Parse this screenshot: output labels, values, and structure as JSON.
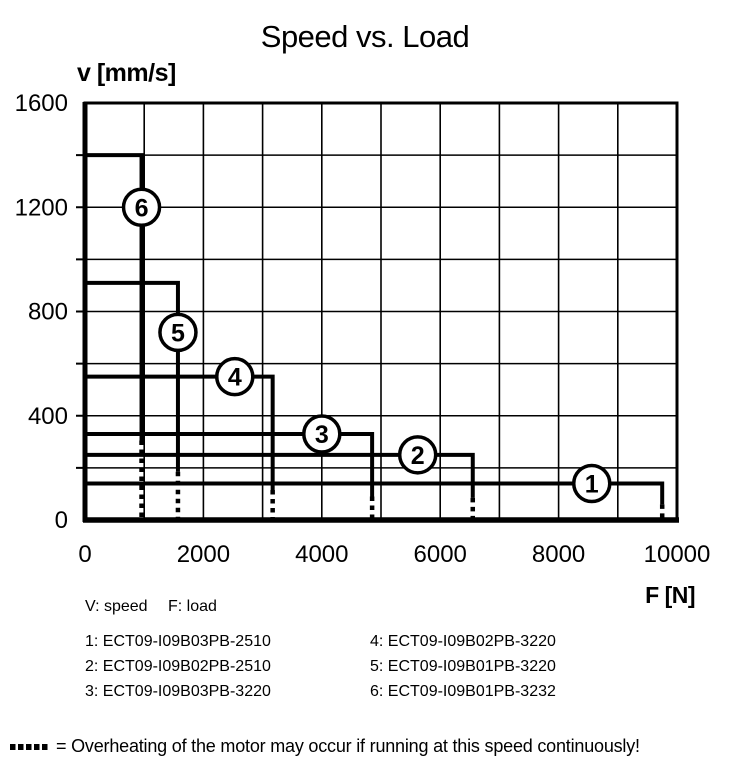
{
  "title": "Speed vs. Load",
  "axes": {
    "y_unit_label": "v [mm/s]",
    "x_unit_label": "F [N]"
  },
  "key": {
    "speed": "V: speed",
    "load": "F: load"
  },
  "legend": {
    "items": [
      "1: ECT09-I09B03PB-2510",
      "2: ECT09-I09B02PB-2510",
      "3: ECT09-I09B03PB-3220",
      "4: ECT09-I09B02PB-3220",
      "5: ECT09-I09B01PB-3220",
      "6: ECT09-I09B01PB-3232"
    ]
  },
  "footer": {
    "note": "= Overheating of the motor may occur if running at this speed continuously!"
  },
  "colors": {
    "ink": "#000000",
    "background": "#ffffff"
  },
  "chart_data": {
    "type": "line",
    "title": "Speed vs. Load",
    "xlabel": "F [N]",
    "ylabel": "v [mm/s]",
    "xlim": [
      0,
      10000
    ],
    "ylim": [
      0,
      1600
    ],
    "x_ticks": [
      0,
      2000,
      4000,
      6000,
      8000,
      10000
    ],
    "y_ticks": [
      0,
      400,
      800,
      1200,
      1600
    ],
    "x_grid_step": 1000,
    "y_grid_step": 200,
    "grid": true,
    "legend_position": "below",
    "dotted_meaning": "Overheating of the motor may occur if running at this speed continuously!",
    "series": [
      {
        "id": "1",
        "model": "ECT09-I09B03PB-2510",
        "speed_mm_s": 140,
        "max_load_N": 9750,
        "solid_drop_to_speed": 60,
        "dotted_below": true,
        "label_pos": {
          "F": 8560,
          "v": 140
        }
      },
      {
        "id": "2",
        "model": "ECT09-I09B02PB-2510",
        "speed_mm_s": 250,
        "max_load_N": 6550,
        "solid_drop_to_speed": 85,
        "dotted_below": true,
        "label_pos": {
          "F": 5620,
          "v": 250
        }
      },
      {
        "id": "3",
        "model": "ECT09-I09B03PB-3220",
        "speed_mm_s": 330,
        "max_load_N": 4850,
        "solid_drop_to_speed": 90,
        "dotted_below": true,
        "label_pos": {
          "F": 4000,
          "v": 330
        }
      },
      {
        "id": "4",
        "model": "ECT09-I09B02PB-3220",
        "speed_mm_s": 550,
        "max_load_N": 3170,
        "solid_drop_to_speed": 115,
        "dotted_below": true,
        "label_pos": {
          "F": 2530,
          "v": 550
        }
      },
      {
        "id": "5",
        "model": "ECT09-I09B01PB-3220",
        "speed_mm_s": 910,
        "max_load_N": 1570,
        "solid_drop_to_speed": 185,
        "dotted_below": true,
        "label_pos": {
          "F": 1570,
          "v": 720
        }
      },
      {
        "id": "6",
        "model": "ECT09-I09B01PB-3232",
        "speed_mm_s": 1400,
        "max_load_N": 955,
        "solid_drop_to_speed": 305,
        "dotted_below": true,
        "label_pos": {
          "F": 955,
          "v": 1200
        }
      }
    ]
  }
}
